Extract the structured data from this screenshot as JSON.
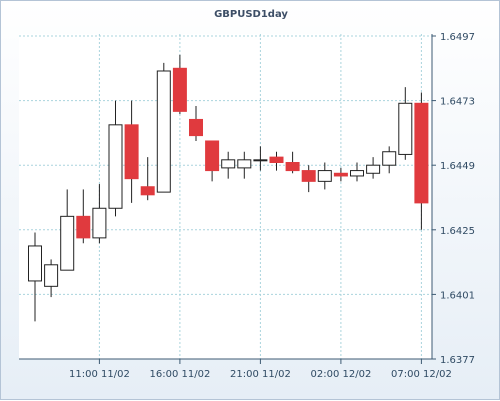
{
  "chart_data": {
    "type": "candlestick",
    "title": "GBPUSD1day",
    "y_ticks": [
      "1.6377",
      "1.6401",
      "1.6425",
      "1.6449",
      "1.6473",
      "1.6497"
    ],
    "x_ticks": [
      "11:00 11/02",
      "16:00 11/02",
      "21:00 11/02",
      "02:00 12/02",
      "07:00 12/02"
    ],
    "ylim": [
      1.6377,
      1.6497
    ],
    "grid": true,
    "colors": {
      "up": "#ffffff",
      "down": "#e03a3e",
      "outline": "#222222",
      "grid": "#aad4dd",
      "axis": "#3d5a73"
    },
    "candles": [
      {
        "open": 1.6406,
        "high": 1.6424,
        "low": 1.6391,
        "close": 1.6419
      },
      {
        "open": 1.6404,
        "high": 1.6414,
        "low": 1.64,
        "close": 1.6412
      },
      {
        "open": 1.641,
        "high": 1.644,
        "low": 1.641,
        "close": 1.643
      },
      {
        "open": 1.643,
        "high": 1.644,
        "low": 1.642,
        "close": 1.6422
      },
      {
        "open": 1.6422,
        "high": 1.6442,
        "low": 1.642,
        "close": 1.6433
      },
      {
        "open": 1.6433,
        "high": 1.6473,
        "low": 1.643,
        "close": 1.6464
      },
      {
        "open": 1.6464,
        "high": 1.6473,
        "low": 1.6435,
        "close": 1.6444
      },
      {
        "open": 1.6441,
        "high": 1.6452,
        "low": 1.6436,
        "close": 1.6438
      },
      {
        "open": 1.6439,
        "high": 1.6487,
        "low": 1.6439,
        "close": 1.6484
      },
      {
        "open": 1.6485,
        "high": 1.649,
        "low": 1.6468,
        "close": 1.6469
      },
      {
        "open": 1.6466,
        "high": 1.6471,
        "low": 1.6458,
        "close": 1.646
      },
      {
        "open": 1.6458,
        "high": 1.6458,
        "low": 1.6443,
        "close": 1.6447
      },
      {
        "open": 1.6448,
        "high": 1.6454,
        "low": 1.6444,
        "close": 1.6451
      },
      {
        "open": 1.6448,
        "high": 1.6454,
        "low": 1.6444,
        "close": 1.6451
      },
      {
        "open": 1.6451,
        "high": 1.6456,
        "low": 1.6447,
        "close": 1.6451
      },
      {
        "open": 1.6452,
        "high": 1.6454,
        "low": 1.6447,
        "close": 1.645
      },
      {
        "open": 1.645,
        "high": 1.6454,
        "low": 1.6446,
        "close": 1.6447
      },
      {
        "open": 1.6447,
        "high": 1.6449,
        "low": 1.6439,
        "close": 1.6443
      },
      {
        "open": 1.6443,
        "high": 1.645,
        "low": 1.644,
        "close": 1.6447
      },
      {
        "open": 1.6446,
        "high": 1.6448,
        "low": 1.6443,
        "close": 1.6445
      },
      {
        "open": 1.6445,
        "high": 1.645,
        "low": 1.6443,
        "close": 1.6447
      },
      {
        "open": 1.6446,
        "high": 1.6452,
        "low": 1.6444,
        "close": 1.6449
      },
      {
        "open": 1.6449,
        "high": 1.6456,
        "low": 1.6446,
        "close": 1.6454
      },
      {
        "open": 1.6453,
        "high": 1.6478,
        "low": 1.6451,
        "close": 1.6472
      },
      {
        "open": 1.6472,
        "high": 1.6476,
        "low": 1.6425,
        "close": 1.6435
      }
    ]
  }
}
